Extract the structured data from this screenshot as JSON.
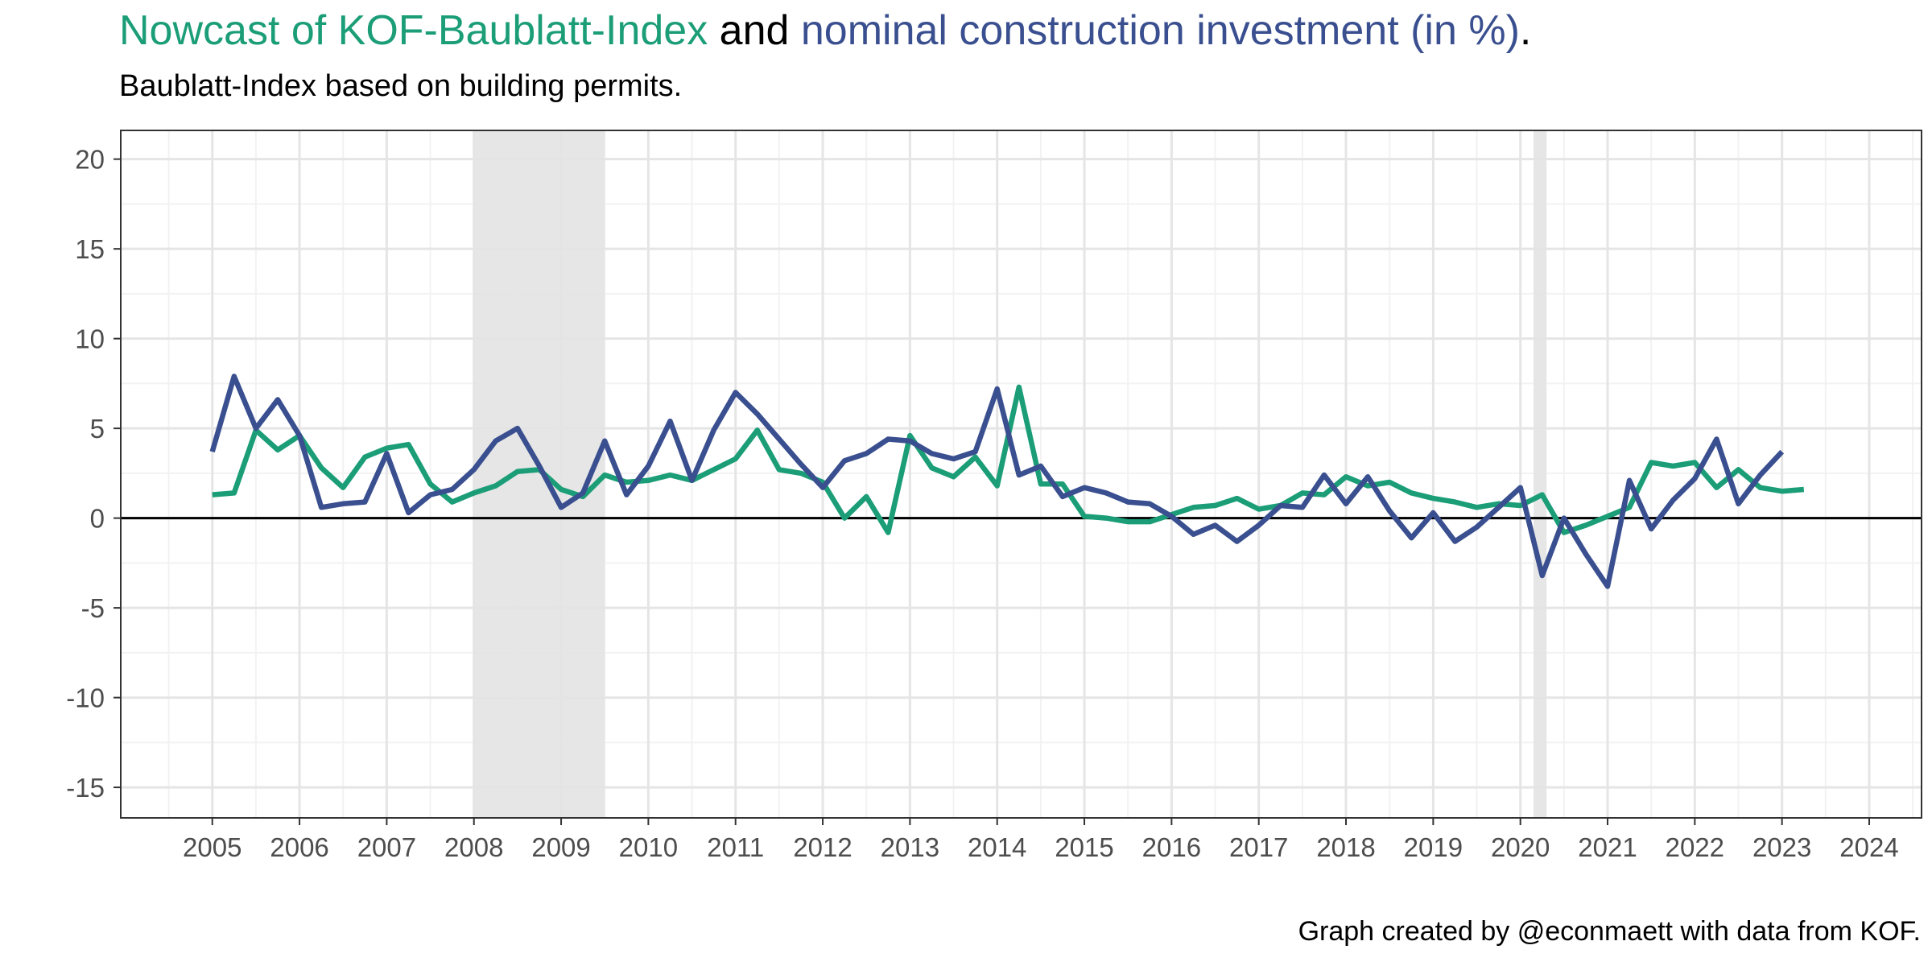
{
  "title": {
    "part1": "Nowcast of KOF-Baublatt-Index",
    "part2": " and ",
    "part3": "nominal construction investment (in %)",
    "part4": "."
  },
  "subtitle": "Baublatt-Index based on building permits.",
  "caption": "Graph created by @econmaett with data from KOF.",
  "colors": {
    "green": "#1b9e77",
    "blue": "#3a4f8f",
    "recession": "#e3e3e3",
    "grid_major": "#e5e5e5",
    "grid_minor": "#f2f2f2"
  },
  "chart_data": {
    "type": "line",
    "xlim": [
      2003.95,
      2024.6
    ],
    "ylim": [
      -16.7,
      21.6
    ],
    "x_ticks": [
      "2005",
      "2006",
      "2007",
      "2008",
      "2009",
      "2010",
      "2011",
      "2012",
      "2013",
      "2014",
      "2015",
      "2016",
      "2017",
      "2018",
      "2019",
      "2020",
      "2021",
      "2022",
      "2023",
      "2024"
    ],
    "y_ticks": [
      "20",
      "15",
      "10",
      "5",
      "0",
      "-5",
      "-10",
      "-15"
    ],
    "zero_line": 0,
    "grid": true,
    "recessions": [
      [
        2008.0,
        2009.5
      ],
      [
        2020.15,
        2020.3
      ]
    ],
    "series": [
      {
        "color": "#1b9e77",
        "x": [
          2005.0,
          2005.25,
          2005.5,
          2005.75,
          2006.0,
          2006.25,
          2006.5,
          2006.75,
          2007.0,
          2007.25,
          2007.5,
          2007.75,
          2008.0,
          2008.25,
          2008.5,
          2008.75,
          2009.0,
          2009.25,
          2009.5,
          2009.75,
          2010.0,
          2010.25,
          2010.5,
          2010.75,
          2011.0,
          2011.25,
          2011.5,
          2011.75,
          2012.0,
          2012.25,
          2012.5,
          2012.75,
          2013.0,
          2013.25,
          2013.5,
          2013.75,
          2014.0,
          2014.25,
          2014.5,
          2014.75,
          2015.0,
          2015.25,
          2015.5,
          2015.75,
          2016.0,
          2016.25,
          2016.5,
          2016.75,
          2017.0,
          2017.25,
          2017.5,
          2017.75,
          2018.0,
          2018.25,
          2018.5,
          2018.75,
          2019.0,
          2019.25,
          2019.5,
          2019.75,
          2020.0,
          2020.25,
          2020.5,
          2020.75,
          2021.0,
          2021.25,
          2021.5,
          2021.75,
          2022.0,
          2022.25,
          2022.5,
          2022.75,
          2023.0,
          2023.25
        ],
        "y": [
          1.3,
          1.4,
          4.9,
          3.8,
          4.6,
          2.8,
          1.7,
          3.4,
          3.9,
          4.1,
          1.9,
          0.9,
          1.4,
          1.8,
          2.6,
          2.7,
          1.6,
          1.2,
          2.4,
          2.0,
          2.1,
          2.4,
          2.1,
          2.7,
          3.3,
          4.9,
          2.7,
          2.5,
          2.0,
          0.0,
          1.2,
          -0.8,
          4.6,
          2.8,
          2.3,
          3.4,
          1.8,
          7.3,
          1.9,
          1.9,
          0.1,
          0.0,
          -0.2,
          -0.2,
          0.2,
          0.6,
          0.7,
          1.1,
          0.5,
          0.7,
          1.4,
          1.3,
          2.3,
          1.8,
          2.0,
          1.4,
          1.1,
          0.9,
          0.6,
          0.8,
          0.7,
          1.3,
          -0.8,
          -0.4,
          0.1,
          0.6,
          3.1,
          2.9,
          3.1,
          1.7,
          2.7,
          1.7,
          1.5,
          1.6
        ]
      },
      {
        "color": "#3a4f8f",
        "x": [
          2005.0,
          2005.25,
          2005.5,
          2005.75,
          2006.0,
          2006.25,
          2006.5,
          2006.75,
          2007.0,
          2007.25,
          2007.5,
          2007.75,
          2008.0,
          2008.25,
          2008.5,
          2008.75,
          2009.0,
          2009.25,
          2009.5,
          2009.75,
          2010.0,
          2010.25,
          2010.5,
          2010.75,
          2011.0,
          2011.25,
          2011.5,
          2011.75,
          2012.0,
          2012.25,
          2012.5,
          2012.75,
          2013.0,
          2013.25,
          2013.5,
          2013.75,
          2014.0,
          2014.25,
          2014.5,
          2014.75,
          2015.0,
          2015.25,
          2015.5,
          2015.75,
          2016.0,
          2016.25,
          2016.5,
          2016.75,
          2017.0,
          2017.25,
          2017.5,
          2017.75,
          2018.0,
          2018.25,
          2018.5,
          2018.75,
          2019.0,
          2019.25,
          2019.5,
          2019.75,
          2020.0,
          2020.25,
          2020.5,
          2020.75,
          2021.0,
          2021.25,
          2021.5,
          2021.75,
          2022.0,
          2022.25,
          2022.5,
          2022.75,
          2023.0
        ],
        "y": [
          3.7,
          7.9,
          5.0,
          6.6,
          4.6,
          0.6,
          0.8,
          0.9,
          3.6,
          0.3,
          1.3,
          1.6,
          2.7,
          4.3,
          5.0,
          2.9,
          0.6,
          1.4,
          4.3,
          1.3,
          2.9,
          5.4,
          2.1,
          4.9,
          7.0,
          5.8,
          4.4,
          3.0,
          1.7,
          3.2,
          3.6,
          4.4,
          4.3,
          3.6,
          3.3,
          3.7,
          7.2,
          2.4,
          2.9,
          1.2,
          1.7,
          1.4,
          0.9,
          0.8,
          0.1,
          -0.9,
          -0.4,
          -1.3,
          -0.4,
          0.7,
          0.6,
          2.4,
          0.8,
          2.3,
          0.4,
          -1.1,
          0.3,
          -1.3,
          -0.5,
          0.6,
          1.7,
          -3.2,
          0.0,
          -2.0,
          -3.8,
          2.1,
          -0.6,
          1.0,
          2.2,
          4.4,
          0.8,
          2.4,
          3.7
        ]
      }
    ]
  }
}
